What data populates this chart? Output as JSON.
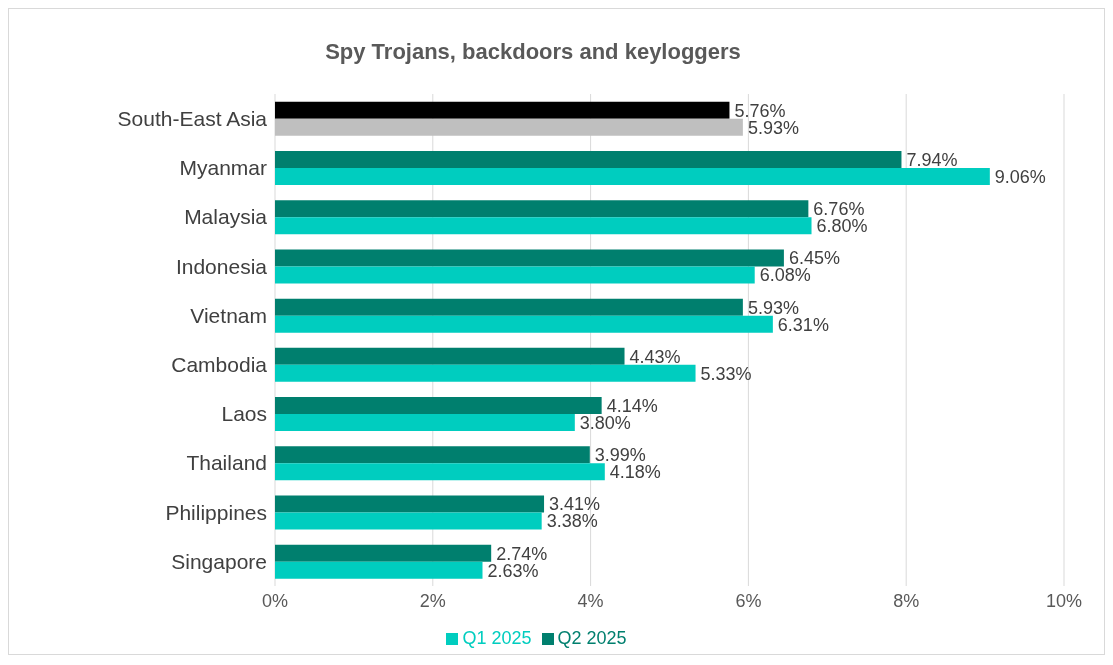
{
  "chart_data": {
    "type": "bar",
    "orientation": "horizontal",
    "title": "Spy Trojans, backdoors and keyloggers",
    "categories": [
      "South-East Asia",
      "Myanmar",
      "Malaysia",
      "Indonesia",
      "Vietnam",
      "Cambodia",
      "Laos",
      "Thailand",
      "Philippines",
      "Singapore"
    ],
    "series": [
      {
        "name": "Q2 2025",
        "color": "#007f6e",
        "colors": [
          "#000000",
          "#007f6e",
          "#007f6e",
          "#007f6e",
          "#007f6e",
          "#007f6e",
          "#007f6e",
          "#007f6e",
          "#007f6e",
          "#007f6e"
        ],
        "values": [
          5.76,
          7.94,
          6.76,
          6.45,
          5.93,
          4.43,
          4.14,
          3.99,
          3.41,
          2.74
        ],
        "value_labels": [
          "5.76%",
          "7.94%",
          "6.76%",
          "6.45%",
          "5.93%",
          "4.43%",
          "4.14%",
          "3.99%",
          "3.41%",
          "2.74%"
        ]
      },
      {
        "name": "Q1 2025",
        "color": "#00cdbf",
        "colors": [
          "#bfbfbf",
          "#00cdbf",
          "#00cdbf",
          "#00cdbf",
          "#00cdbf",
          "#00cdbf",
          "#00cdbf",
          "#00cdbf",
          "#00cdbf",
          "#00cdbf"
        ],
        "values": [
          5.93,
          9.06,
          6.8,
          6.08,
          6.31,
          5.33,
          3.8,
          4.18,
          3.38,
          2.63
        ],
        "value_labels": [
          "5.93%",
          "9.06%",
          "6.80%",
          "6.08%",
          "6.31%",
          "5.33%",
          "3.80%",
          "4.18%",
          "3.38%",
          "2.63%"
        ]
      }
    ],
    "xlim": [
      0,
      10
    ],
    "xticks": [
      {
        "value": 0,
        "label": "0%"
      },
      {
        "value": 2,
        "label": "2%"
      },
      {
        "value": 4,
        "label": "4%"
      },
      {
        "value": 6,
        "label": "6%"
      },
      {
        "value": 8,
        "label": "8%"
      },
      {
        "value": 10,
        "label": "10%"
      }
    ],
    "grid": "x",
    "legend": "bottom"
  }
}
